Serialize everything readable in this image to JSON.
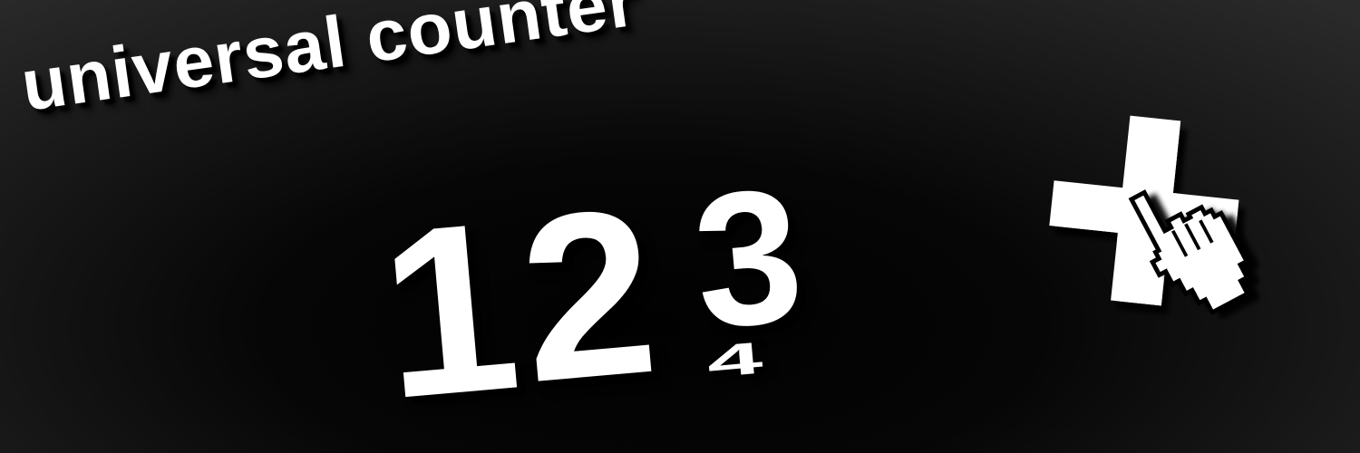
{
  "title": "universal counter",
  "counter": {
    "digits": [
      "1",
      "2",
      "3",
      "4"
    ]
  },
  "icons": {
    "plus": "plus-icon",
    "cursor": "hand-pointer-icon"
  },
  "colors": {
    "foreground": "#ffffff",
    "background": "#000000",
    "shadow": "#000000"
  }
}
